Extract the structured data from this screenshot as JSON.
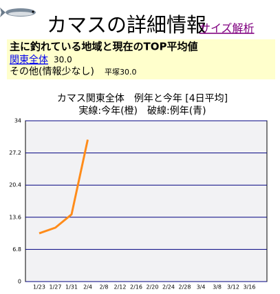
{
  "header": {
    "title": "カマスの詳細情報",
    "link": "サイズ解析"
  },
  "summary": {
    "heading": "主に釣れている地域と現在のTOP平均値",
    "region_link": "関東全体",
    "region_value": "30.0",
    "other": "その他(情報少なし)",
    "other_detail": "平塚30.0"
  },
  "chart_data": {
    "type": "line",
    "title": "カマス関東全体　例年と今年 [4日平均]",
    "subtitle": "実線:今年(橙)　破線:例年(青)",
    "categories": [
      "1/23",
      "1/27",
      "1/31",
      "2/4",
      "2/8",
      "2/12",
      "2/16",
      "2/20",
      "2/24",
      "2/28",
      "3/4",
      "3/8",
      "3/12",
      "3/16"
    ],
    "values": [
      10.2,
      11.4,
      14.2,
      30.0,
      null,
      null,
      null,
      null,
      null,
      null,
      null,
      null,
      null,
      null
    ],
    "color": "#ff8c1a",
    "grid_color": "#000080",
    "ylim": [
      0,
      34
    ],
    "yticks": [
      0,
      6.8,
      13.6,
      20.4,
      27.2,
      34
    ],
    "grid": true
  }
}
